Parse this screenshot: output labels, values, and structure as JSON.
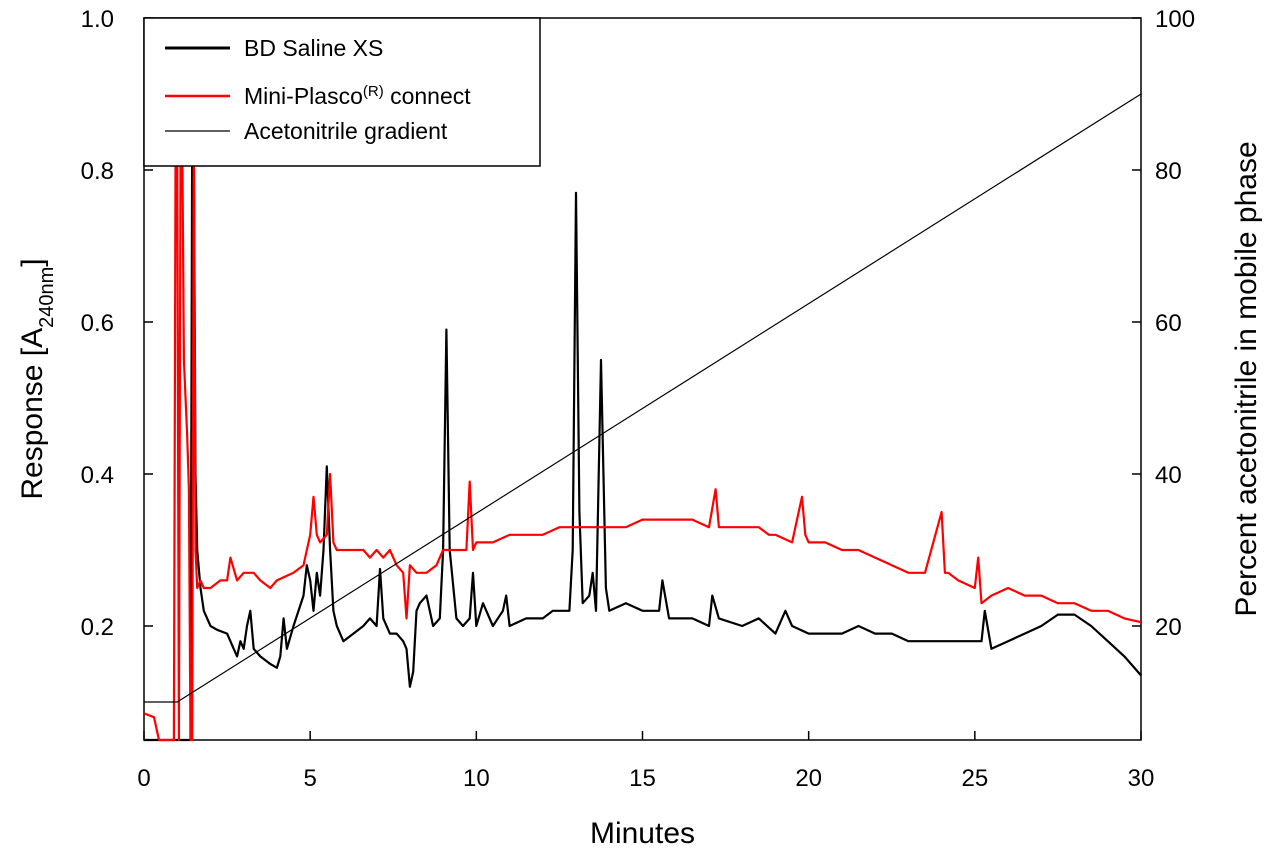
{
  "chart_data": {
    "type": "line",
    "x_axis": {
      "label": "Minutes",
      "range": [
        0,
        30
      ],
      "ticks": [
        0,
        5,
        10,
        15,
        20,
        25,
        30
      ]
    },
    "y_axis_left": {
      "label_main": "Response [A",
      "label_sub": "240nm",
      "label_end": "]",
      "range": [
        0.05,
        1.0
      ],
      "ticks": [
        0.2,
        0.4,
        0.6,
        0.8,
        1.0
      ],
      "tick_labels": [
        "0.2",
        "0.4",
        "0.6",
        "0.8",
        "1.0"
      ]
    },
    "y_axis_right": {
      "label": "Percent acetonitrile in mobile phase",
      "range": [
        5,
        100
      ],
      "ticks": [
        20,
        40,
        60,
        80,
        100
      ]
    },
    "legend": {
      "position": "top-left",
      "entries": [
        {
          "label_main": "BD Saline XS",
          "label_sup": "",
          "label_end": ""
        },
        {
          "label_main": "Mini-Plasco",
          "label_sup": "(R)",
          "label_end": " connect"
        },
        {
          "label_main": "Acetonitrile gradient",
          "label_sup": "",
          "label_end": ""
        }
      ]
    },
    "series": [
      {
        "name": "BD Saline XS",
        "color": "#000000",
        "axis": "left",
        "x": [
          0,
          0.5,
          0.9,
          1.0,
          1.3,
          1.4,
          1.45,
          1.5,
          1.55,
          1.6,
          1.7,
          1.8,
          2.0,
          2.2,
          2.5,
          2.7,
          2.8,
          2.9,
          3.0,
          3.1,
          3.2,
          3.3,
          3.5,
          3.8,
          4.0,
          4.1,
          4.2,
          4.3,
          4.5,
          4.8,
          4.9,
          5.0,
          5.1,
          5.2,
          5.3,
          5.4,
          5.5,
          5.6,
          5.7,
          5.8,
          6.0,
          6.3,
          6.6,
          6.8,
          7.0,
          7.1,
          7.2,
          7.4,
          7.6,
          7.8,
          7.9,
          8.0,
          8.1,
          8.2,
          8.3,
          8.5,
          8.7,
          8.9,
          9.0,
          9.1,
          9.2,
          9.4,
          9.6,
          9.8,
          9.9,
          10.0,
          10.2,
          10.5,
          10.8,
          10.9,
          11.0,
          11.5,
          12.0,
          12.3,
          12.5,
          12.8,
          12.9,
          13.0,
          13.1,
          13.2,
          13.4,
          13.5,
          13.6,
          13.75,
          13.9,
          14.0,
          14.5,
          15.0,
          15.5,
          15.6,
          15.8,
          16.5,
          17.0,
          17.1,
          17.3,
          18.0,
          18.5,
          19.0,
          19.3,
          19.5,
          20.0,
          20.5,
          21.0,
          21.5,
          22.0,
          22.5,
          23.0,
          23.5,
          24.0,
          24.5,
          25.0,
          25.2,
          25.3,
          25.5,
          26.0,
          26.5,
          27.0,
          27.5,
          28.0,
          28.5,
          29.0,
          29.5,
          30.0
        ],
        "y": [
          0.05,
          0.05,
          0.05,
          0.05,
          0.05,
          0.05,
          0.85,
          0.85,
          0.4,
          0.3,
          0.25,
          0.22,
          0.2,
          0.195,
          0.19,
          0.17,
          0.16,
          0.18,
          0.17,
          0.2,
          0.22,
          0.17,
          0.16,
          0.15,
          0.145,
          0.16,
          0.21,
          0.17,
          0.2,
          0.24,
          0.28,
          0.26,
          0.22,
          0.27,
          0.24,
          0.3,
          0.41,
          0.3,
          0.22,
          0.2,
          0.18,
          0.19,
          0.2,
          0.21,
          0.2,
          0.275,
          0.21,
          0.19,
          0.19,
          0.18,
          0.17,
          0.12,
          0.14,
          0.22,
          0.23,
          0.24,
          0.2,
          0.21,
          0.3,
          0.59,
          0.3,
          0.21,
          0.2,
          0.21,
          0.27,
          0.2,
          0.23,
          0.2,
          0.22,
          0.24,
          0.2,
          0.21,
          0.21,
          0.22,
          0.22,
          0.22,
          0.3,
          0.77,
          0.35,
          0.23,
          0.24,
          0.27,
          0.22,
          0.55,
          0.25,
          0.22,
          0.23,
          0.22,
          0.22,
          0.26,
          0.21,
          0.21,
          0.2,
          0.24,
          0.21,
          0.2,
          0.21,
          0.19,
          0.22,
          0.2,
          0.19,
          0.19,
          0.19,
          0.2,
          0.19,
          0.19,
          0.18,
          0.18,
          0.18,
          0.18,
          0.18,
          0.18,
          0.22,
          0.17,
          0.18,
          0.19,
          0.2,
          0.215,
          0.215,
          0.2,
          0.18,
          0.16,
          0.135
        ]
      },
      {
        "name": "Mini-Plasco(R) connect",
        "color": "#ff0000",
        "axis": "left",
        "x": [
          0,
          0.3,
          0.4,
          0.45,
          0.5,
          0.9,
          0.95,
          1.0,
          1.05,
          1.1,
          1.15,
          1.2,
          1.3,
          1.35,
          1.4,
          1.45,
          1.5,
          1.55,
          1.6,
          1.7,
          1.8,
          2.0,
          2.3,
          2.5,
          2.6,
          2.8,
          3.0,
          3.3,
          3.5,
          3.8,
          4.0,
          4.5,
          4.8,
          5.0,
          5.1,
          5.2,
          5.3,
          5.5,
          5.6,
          5.7,
          5.8,
          6.0,
          6.3,
          6.6,
          6.8,
          7.0,
          7.2,
          7.4,
          7.6,
          7.8,
          7.9,
          8.0,
          8.2,
          8.5,
          8.8,
          9.0,
          9.3,
          9.5,
          9.7,
          9.8,
          9.9,
          10.0,
          10.5,
          11.0,
          11.5,
          12.0,
          12.5,
          13.0,
          13.5,
          14.0,
          14.5,
          15.0,
          15.5,
          16.0,
          16.5,
          17.0,
          17.2,
          17.3,
          17.5,
          18.0,
          18.5,
          18.8,
          19.0,
          19.5,
          19.8,
          19.9,
          20.0,
          20.5,
          21.0,
          21.5,
          22.0,
          22.5,
          23.0,
          23.5,
          24.0,
          24.1,
          24.2,
          24.5,
          25.0,
          25.1,
          25.2,
          25.5,
          26.0,
          26.5,
          27.0,
          27.5,
          28.0,
          28.5,
          29.0,
          29.5,
          30.0
        ],
        "y": [
          0.085,
          0.08,
          0.06,
          0.05,
          0.05,
          0.05,
          0.85,
          0.85,
          0.05,
          0.85,
          0.85,
          0.55,
          0.45,
          0.38,
          0.05,
          0.05,
          0.85,
          0.3,
          0.25,
          0.26,
          0.25,
          0.25,
          0.26,
          0.26,
          0.29,
          0.26,
          0.27,
          0.27,
          0.26,
          0.25,
          0.26,
          0.27,
          0.28,
          0.32,
          0.37,
          0.32,
          0.31,
          0.32,
          0.4,
          0.31,
          0.3,
          0.3,
          0.3,
          0.3,
          0.29,
          0.3,
          0.29,
          0.3,
          0.28,
          0.27,
          0.21,
          0.28,
          0.27,
          0.27,
          0.28,
          0.3,
          0.3,
          0.3,
          0.3,
          0.39,
          0.3,
          0.31,
          0.31,
          0.32,
          0.32,
          0.32,
          0.33,
          0.33,
          0.33,
          0.33,
          0.33,
          0.34,
          0.34,
          0.34,
          0.34,
          0.33,
          0.38,
          0.33,
          0.33,
          0.33,
          0.33,
          0.32,
          0.32,
          0.31,
          0.37,
          0.32,
          0.31,
          0.31,
          0.3,
          0.3,
          0.29,
          0.28,
          0.27,
          0.27,
          0.35,
          0.27,
          0.27,
          0.26,
          0.25,
          0.29,
          0.23,
          0.24,
          0.25,
          0.24,
          0.24,
          0.23,
          0.23,
          0.22,
          0.22,
          0.21,
          0.205
        ]
      },
      {
        "name": "Acetonitrile gradient",
        "color": "#000000",
        "axis": "right",
        "x": [
          0,
          1,
          30
        ],
        "y": [
          10,
          10,
          90
        ]
      }
    ]
  }
}
